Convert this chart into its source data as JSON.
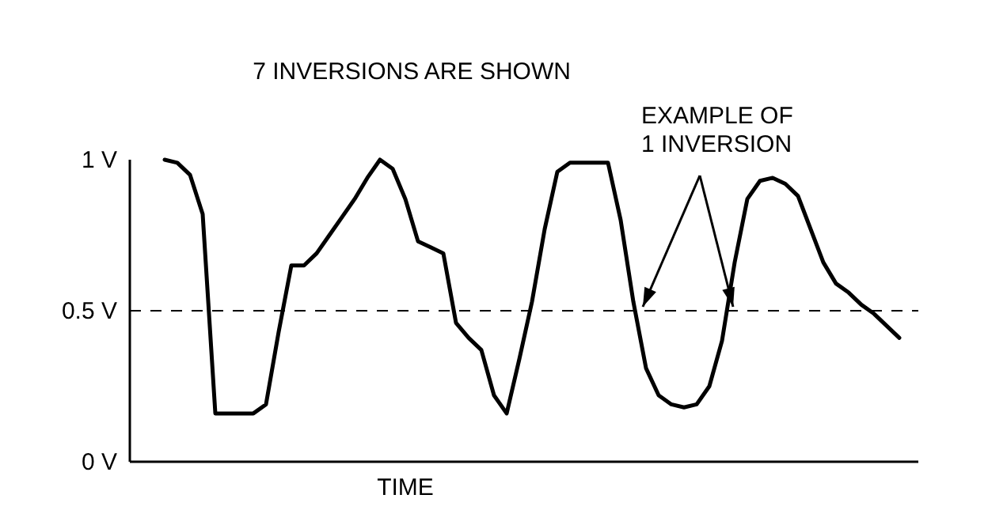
{
  "chart_data": {
    "type": "line",
    "title": "7 INVERSIONS ARE SHOWN",
    "xlabel": "TIME",
    "categories": [
      null,
      null,
      null,
      null,
      null,
      null,
      null,
      null,
      null,
      null,
      null,
      null,
      null,
      null,
      null,
      null,
      null,
      null,
      null,
      null,
      null,
      null,
      null,
      null,
      null,
      null,
      null,
      null,
      null,
      null,
      null,
      null,
      null,
      null,
      null,
      null,
      null,
      null,
      null,
      null,
      null,
      null,
      null,
      null,
      null,
      null,
      null,
      null,
      null,
      null,
      null,
      null,
      null,
      null,
      null,
      null,
      null,
      null,
      null
    ],
    "series": [
      {
        "color": "#000000",
        "values": [
          1.0,
          0.99,
          0.95,
          0.82,
          0.16,
          0.16,
          0.16,
          0.16,
          0.19,
          0.43,
          0.65,
          0.65,
          0.69,
          0.75,
          0.81,
          0.87,
          0.94,
          1.0,
          0.97,
          0.87,
          0.73,
          0.71,
          0.69,
          0.46,
          0.41,
          0.37,
          0.22,
          0.16,
          0.34,
          0.53,
          0.77,
          0.96,
          0.99,
          0.99,
          0.99,
          0.99,
          0.8,
          0.53,
          0.31,
          0.22,
          0.19,
          0.18,
          0.19,
          0.25,
          0.4,
          0.66,
          0.87,
          0.93,
          0.94,
          0.92,
          0.88,
          0.77,
          0.66,
          0.59,
          0.56,
          0.52,
          0.49,
          0.45,
          0.41
        ]
      }
    ],
    "ylim": [
      0,
      1
    ],
    "yticks": [
      {
        "value": 0,
        "label": "0 V"
      },
      {
        "value": 0.5,
        "label": "0.5 V"
      },
      {
        "value": 1,
        "label": "1 V"
      }
    ],
    "ref_lines": [
      {
        "axis": "y",
        "value": 0.5,
        "color": "#000000",
        "line_style": "dashed"
      }
    ],
    "annotations": [
      "EXAMPLE OF\n1 INVERSION"
    ],
    "tick_labels": "y",
    "grid": false,
    "marker": "none",
    "line_style": "solid"
  }
}
